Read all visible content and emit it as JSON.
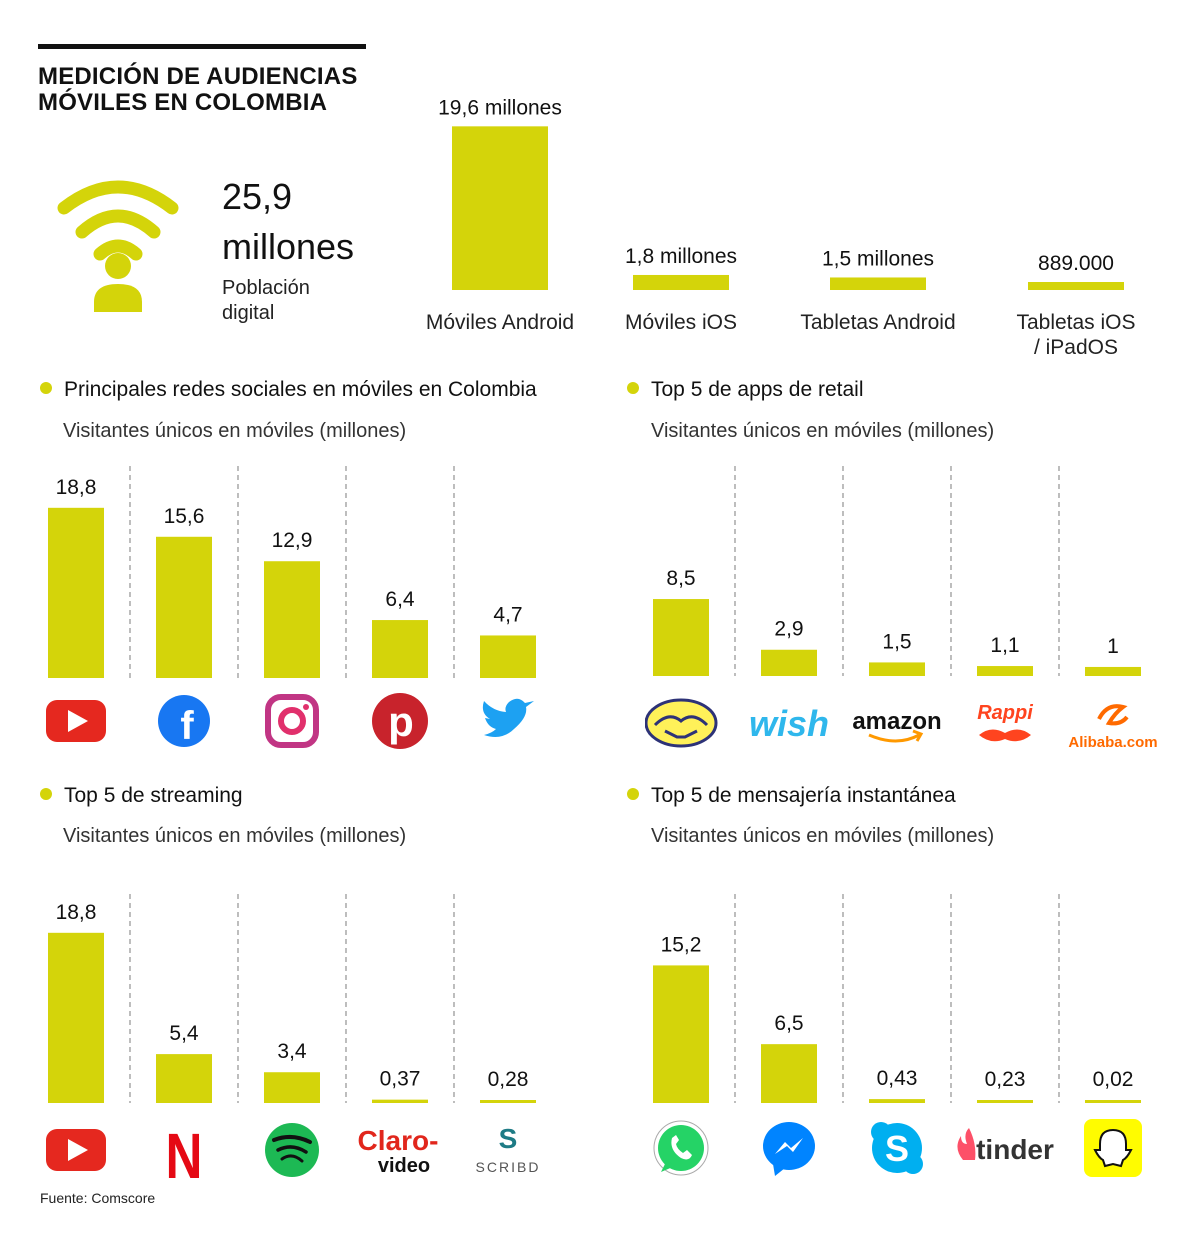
{
  "header": {
    "title_line1": "MEDICIÓN DE AUDIENCIAS",
    "title_line2": "MÓVILES EN COLOMBIA"
  },
  "population": {
    "value_line1": "25,9",
    "value_line2": "millones",
    "label_line1": "Población",
    "label_line2": "digital"
  },
  "colors": {
    "bar": "#d4d40a",
    "divider": "#9a9a9a",
    "text": "#111111"
  },
  "chart_data": [
    {
      "id": "devices",
      "type": "bar",
      "categories": [
        "Móviles Android",
        "Móviles iOS",
        "Tabletas Android",
        "Tabletas iOS / iPadOS"
      ],
      "category_lines": [
        [
          "Móviles Android"
        ],
        [
          "Móviles iOS"
        ],
        [
          "Tabletas Android"
        ],
        [
          "Tabletas iOS",
          "/ iPadOS"
        ]
      ],
      "values": [
        19.6,
        1.8,
        1.5,
        0.889
      ],
      "value_labels": [
        "19,6 millones",
        "1,8 millones",
        "1,5 millones",
        "889.000"
      ],
      "unit": "millones",
      "ylim": [
        0,
        20
      ]
    },
    {
      "id": "social",
      "type": "bar",
      "title": "Principales redes sociales en móviles en Colombia",
      "subtitle": "Visitantes únicos en móviles (millones)",
      "categories": [
        "YouTube",
        "Facebook",
        "Instagram",
        "Pinterest",
        "Twitter"
      ],
      "icons": [
        "youtube-icon",
        "facebook-icon",
        "instagram-icon",
        "pinterest-icon",
        "twitter-icon"
      ],
      "values": [
        18.8,
        15.6,
        12.9,
        6.4,
        4.7
      ],
      "value_labels": [
        "18,8",
        "15,6",
        "12,9",
        "6,4",
        "4,7"
      ],
      "ylim": [
        0,
        19
      ]
    },
    {
      "id": "retail",
      "type": "bar",
      "title": "Top 5 de  apps de retail",
      "subtitle": "Visitantes únicos en móviles (millones)",
      "categories": [
        "Mercado Libre",
        "Wish",
        "Amazon",
        "Rappi",
        "Alibaba"
      ],
      "icons": [
        "mercadolibre-icon",
        "wish-icon",
        "amazon-icon",
        "rappi-icon",
        "alibaba-icon"
      ],
      "logo_text": [
        "",
        "wish",
        "amazon",
        "Rappi",
        "Alibaba.com"
      ],
      "values": [
        8.5,
        2.9,
        1.5,
        1.1,
        1
      ],
      "value_labels": [
        "8,5",
        "2,9",
        "1,5",
        "1,1",
        "1"
      ],
      "ylim": [
        0,
        19
      ]
    },
    {
      "id": "streaming",
      "type": "bar",
      "title": "Top 5 de streaming",
      "subtitle": "Visitantes únicos en móviles (millones)",
      "categories": [
        "YouTube",
        "Netflix",
        "Spotify",
        "Claro video",
        "Scribd"
      ],
      "icons": [
        "youtube-icon",
        "netflix-icon",
        "spotify-icon",
        "claro-video-icon",
        "scribd-icon"
      ],
      "logo_text": [
        "",
        "N",
        "",
        "Claro- video",
        "SCRIBD"
      ],
      "values": [
        18.8,
        5.4,
        3.4,
        0.37,
        0.28
      ],
      "value_labels": [
        "18,8",
        "5,4",
        "3,4",
        "0,37",
        "0,28"
      ],
      "ylim": [
        0,
        19
      ]
    },
    {
      "id": "messaging",
      "type": "bar",
      "title": "Top 5 de mensajería instantánea",
      "subtitle": "Visitantes únicos en móviles (millones)",
      "categories": [
        "WhatsApp",
        "Messenger",
        "Skype",
        "Tinder",
        "Snapchat"
      ],
      "icons": [
        "whatsapp-icon",
        "messenger-icon",
        "skype-icon",
        "tinder-icon",
        "snapchat-icon"
      ],
      "logo_text": [
        "",
        "",
        "",
        "tinder",
        ""
      ],
      "values": [
        15.2,
        6.5,
        0.43,
        0.23,
        0.02
      ],
      "value_labels": [
        "15,2",
        "6,5",
        "0,43",
        "0,23",
        "0,02"
      ],
      "ylim": [
        0,
        19
      ]
    }
  ],
  "footer": {
    "source": "Fuente: Comscore"
  }
}
